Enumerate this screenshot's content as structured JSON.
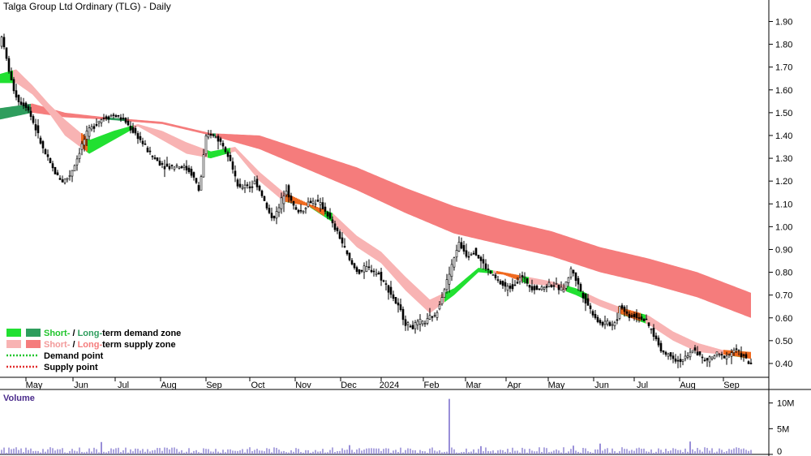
{
  "chart_data": {
    "type": "candlestick",
    "title": "Talga Group Ltd Ordinary (TLG) - Daily",
    "price_axis": {
      "ticks": [
        "1.90",
        "1.80",
        "1.70",
        "1.60",
        "1.50",
        "1.40",
        "1.30",
        "1.20",
        "1.10",
        "1.00",
        "0.90",
        "0.80",
        "0.70",
        "0.60",
        "0.50",
        "0.40"
      ],
      "range": [
        0.35,
        1.98
      ]
    },
    "x_months": [
      "May",
      "Jun",
      "Jul",
      "Aug",
      "Sep",
      "Oct",
      "Nov",
      "Dec",
      "2024",
      "Feb",
      "Mar",
      "Apr",
      "May",
      "Jun",
      "Jul",
      "Aug",
      "Sep"
    ],
    "price_path": [
      [
        0,
        1.72
      ],
      [
        4,
        1.86
      ],
      [
        8,
        1.78
      ],
      [
        12,
        1.72
      ],
      [
        18,
        1.62
      ],
      [
        26,
        1.55
      ],
      [
        36,
        1.53
      ],
      [
        46,
        1.44
      ],
      [
        56,
        1.34
      ],
      [
        64,
        1.28
      ],
      [
        72,
        1.23
      ],
      [
        80,
        1.2
      ],
      [
        88,
        1.22
      ],
      [
        96,
        1.28
      ],
      [
        104,
        1.36
      ],
      [
        112,
        1.42
      ],
      [
        118,
        1.44
      ],
      [
        126,
        1.47
      ],
      [
        134,
        1.48
      ],
      [
        142,
        1.49
      ],
      [
        150,
        1.48
      ],
      [
        158,
        1.46
      ],
      [
        164,
        1.43
      ],
      [
        172,
        1.4
      ],
      [
        180,
        1.36
      ],
      [
        190,
        1.31
      ],
      [
        200,
        1.28
      ],
      [
        210,
        1.26
      ],
      [
        220,
        1.27
      ],
      [
        230,
        1.26
      ],
      [
        238,
        1.24
      ],
      [
        244,
        1.2
      ],
      [
        248,
        1.16
      ],
      [
        252,
        1.24
      ],
      [
        256,
        1.38
      ],
      [
        262,
        1.41
      ],
      [
        270,
        1.39
      ],
      [
        278,
        1.36
      ],
      [
        286,
        1.31
      ],
      [
        292,
        1.22
      ],
      [
        298,
        1.16
      ],
      [
        306,
        1.19
      ],
      [
        312,
        1.17
      ],
      [
        318,
        1.2
      ],
      [
        326,
        1.14
      ],
      [
        334,
        1.06
      ],
      [
        340,
        1.04
      ],
      [
        346,
        1.07
      ],
      [
        352,
        1.14
      ],
      [
        356,
        1.17
      ],
      [
        362,
        1.11
      ],
      [
        368,
        1.07
      ],
      [
        376,
        1.07
      ],
      [
        384,
        1.11
      ],
      [
        392,
        1.11
      ],
      [
        400,
        1.09
      ],
      [
        406,
        1.06
      ],
      [
        414,
        1.0
      ],
      [
        420,
        0.97
      ],
      [
        426,
        0.92
      ],
      [
        434,
        0.85
      ],
      [
        440,
        0.82
      ],
      [
        446,
        0.8
      ],
      [
        454,
        0.82
      ],
      [
        462,
        0.81
      ],
      [
        470,
        0.79
      ],
      [
        478,
        0.75
      ],
      [
        486,
        0.7
      ],
      [
        492,
        0.66
      ],
      [
        498,
        0.62
      ],
      [
        504,
        0.57
      ],
      [
        512,
        0.56
      ],
      [
        520,
        0.58
      ],
      [
        528,
        0.58
      ],
      [
        536,
        0.61
      ],
      [
        540,
        0.6
      ],
      [
        544,
        0.66
      ],
      [
        550,
        0.72
      ],
      [
        556,
        0.78
      ],
      [
        562,
        0.85
      ],
      [
        568,
        0.93
      ],
      [
        574,
        0.9
      ],
      [
        580,
        0.87
      ],
      [
        586,
        0.9
      ],
      [
        592,
        0.87
      ],
      [
        598,
        0.84
      ],
      [
        604,
        0.81
      ],
      [
        612,
        0.78
      ],
      [
        620,
        0.75
      ],
      [
        628,
        0.73
      ],
      [
        636,
        0.74
      ],
      [
        644,
        0.78
      ],
      [
        650,
        0.77
      ],
      [
        656,
        0.74
      ],
      [
        664,
        0.73
      ],
      [
        672,
        0.73
      ],
      [
        680,
        0.75
      ],
      [
        688,
        0.74
      ],
      [
        696,
        0.72
      ],
      [
        702,
        0.76
      ],
      [
        708,
        0.82
      ],
      [
        714,
        0.76
      ],
      [
        720,
        0.71
      ],
      [
        726,
        0.67
      ],
      [
        732,
        0.63
      ],
      [
        738,
        0.6
      ],
      [
        744,
        0.57
      ],
      [
        750,
        0.58
      ],
      [
        758,
        0.57
      ],
      [
        764,
        0.6
      ],
      [
        768,
        0.67
      ],
      [
        772,
        0.63
      ],
      [
        778,
        0.61
      ],
      [
        786,
        0.61
      ],
      [
        794,
        0.6
      ],
      [
        802,
        0.57
      ],
      [
        810,
        0.52
      ],
      [
        818,
        0.46
      ],
      [
        824,
        0.44
      ],
      [
        830,
        0.44
      ],
      [
        838,
        0.41
      ],
      [
        846,
        0.42
      ],
      [
        852,
        0.43
      ],
      [
        858,
        0.47
      ],
      [
        864,
        0.44
      ],
      [
        872,
        0.41
      ],
      [
        878,
        0.42
      ],
      [
        886,
        0.44
      ],
      [
        894,
        0.43
      ],
      [
        902,
        0.44
      ],
      [
        908,
        0.46
      ],
      [
        914,
        0.45
      ],
      [
        920,
        0.43
      ],
      [
        926,
        0.4
      ]
    ],
    "long_term_zone": [
      [
        0,
        1.47,
        1.52
      ],
      [
        40,
        1.5,
        1.54
      ],
      [
        80,
        1.48,
        1.5
      ],
      [
        130,
        1.47,
        1.48
      ],
      [
        200,
        1.45,
        1.46
      ],
      [
        260,
        1.4,
        1.41
      ],
      [
        320,
        1.34,
        1.4
      ],
      [
        380,
        1.25,
        1.33
      ],
      [
        440,
        1.16,
        1.26
      ],
      [
        500,
        1.06,
        1.17
      ],
      [
        560,
        0.97,
        1.09
      ],
      [
        620,
        0.92,
        1.03
      ],
      [
        680,
        0.87,
        0.98
      ],
      [
        740,
        0.8,
        0.91
      ],
      [
        800,
        0.75,
        0.86
      ],
      [
        860,
        0.69,
        0.8
      ],
      [
        926,
        0.6,
        0.71
      ]
    ],
    "short_term_zone": [
      [
        0,
        1.63,
        1.67
      ],
      [
        20,
        1.63,
        1.69
      ],
      [
        40,
        1.58,
        1.62
      ],
      [
        60,
        1.5,
        1.54
      ],
      [
        80,
        1.4,
        1.47
      ],
      [
        110,
        1.32,
        1.38
      ],
      [
        140,
        1.38,
        1.42
      ],
      [
        170,
        1.44,
        1.45
      ],
      [
        200,
        1.38,
        1.42
      ],
      [
        230,
        1.32,
        1.37
      ],
      [
        260,
        1.3,
        1.33
      ],
      [
        290,
        1.33,
        1.35
      ],
      [
        320,
        1.2,
        1.24
      ],
      [
        350,
        1.11,
        1.15
      ],
      [
        380,
        1.09,
        1.1
      ],
      [
        410,
        1.02,
        1.06
      ],
      [
        440,
        0.91,
        0.96
      ],
      [
        470,
        0.84,
        0.89
      ],
      [
        500,
        0.72,
        0.78
      ],
      [
        530,
        0.62,
        0.68
      ],
      [
        560,
        0.7,
        0.73
      ],
      [
        590,
        0.8,
        0.82
      ],
      [
        620,
        0.79,
        0.8
      ],
      [
        650,
        0.75,
        0.78
      ],
      [
        680,
        0.74,
        0.76
      ],
      [
        710,
        0.7,
        0.73
      ],
      [
        740,
        0.65,
        0.68
      ],
      [
        770,
        0.61,
        0.64
      ],
      [
        800,
        0.57,
        0.61
      ],
      [
        830,
        0.5,
        0.54
      ],
      [
        860,
        0.45,
        0.49
      ],
      [
        890,
        0.44,
        0.46
      ],
      [
        926,
        0.42,
        0.45
      ]
    ],
    "volume_axis": {
      "ticks": [
        "10M",
        "5M",
        "0"
      ],
      "range": [
        0,
        12
      ]
    },
    "volume_title": "Volume",
    "volume_spikes": [
      [
        555,
        10.8
      ],
      [
        125,
        2.4
      ],
      [
        432,
        1.8
      ],
      [
        592,
        1.6
      ],
      [
        708,
        1.7
      ],
      [
        740,
        2.1
      ],
      [
        852,
        2.5
      ]
    ],
    "legend": [
      {
        "label_a": "Short-",
        "label_b": " / ",
        "label_c": "Long-",
        "label_d": "term demand zone",
        "color_a": "#21e031",
        "color_b": "#2e9d5d"
      },
      {
        "label_a": "Short-",
        "label_b": " / ",
        "label_c": "Long-",
        "label_d": "term supply zone",
        "color_a": "#f8b3b3",
        "color_b": "#f57c7c"
      },
      {
        "label": "Demand point",
        "color": "#21c52d"
      },
      {
        "label": "Supply point",
        "color": "#e12d2d"
      }
    ],
    "colors": {
      "demand_short": "#21e031",
      "demand_long": "#2e9d5d",
      "supply_short": "#f8b3b3",
      "supply_long": "#f57c7c",
      "cross": "#f06a1f",
      "volume_bar": "#8a7fd1",
      "volume_spike": "#6d5ec7",
      "candle": "#000000"
    }
  }
}
